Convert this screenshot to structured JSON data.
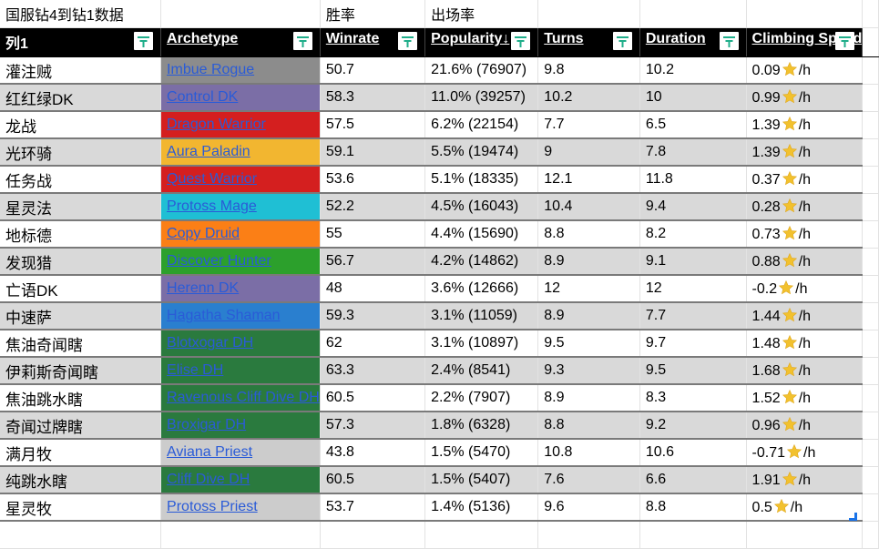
{
  "sheet": {
    "title": "国服钻4到钻1数据",
    "subheaders": {
      "winrate": "胜率",
      "popularity": "出场率"
    },
    "columns": [
      {
        "key": "name",
        "label": "列1"
      },
      {
        "key": "archetype",
        "label": "Archetype"
      },
      {
        "key": "winrate",
        "label": "Winrate"
      },
      {
        "key": "popularity",
        "label": "Popularity↓"
      },
      {
        "key": "turns",
        "label": "Turns"
      },
      {
        "key": "duration",
        "label": "Duration"
      },
      {
        "key": "climbing",
        "label": "Climbing Speed"
      }
    ],
    "climb_unit": "/h",
    "rows": [
      {
        "name": "灌注贼",
        "archetype": "Imbue Rogue",
        "color": "#8c8c8c",
        "winrate": "50.7",
        "popularity": "21.6% (76907)",
        "turns": "9.8",
        "duration": "10.2",
        "climbing": "0.09"
      },
      {
        "name": "红红绿DK",
        "archetype": "Control DK",
        "color": "#7b6ea6",
        "winrate": "58.3",
        "popularity": "11.0% (39257)",
        "turns": "10.2",
        "duration": "10",
        "climbing": "0.99"
      },
      {
        "name": "龙战",
        "archetype": "Dragon Warrior",
        "color": "#d41f1f",
        "winrate": "57.5",
        "popularity": "6.2% (22154)",
        "turns": "7.7",
        "duration": "6.5",
        "climbing": "1.39"
      },
      {
        "name": "光环骑",
        "archetype": "Aura Paladin",
        "color": "#f2b630",
        "winrate": "59.1",
        "popularity": "5.5% (19474)",
        "turns": "9",
        "duration": "7.8",
        "climbing": "1.39"
      },
      {
        "name": "任务战",
        "archetype": "Quest Warrior",
        "color": "#d41f1f",
        "winrate": "53.6",
        "popularity": "5.1% (18335)",
        "turns": "12.1",
        "duration": "11.8",
        "climbing": "0.37"
      },
      {
        "name": "星灵法",
        "archetype": "Protoss Mage",
        "color": "#1fbfd4",
        "winrate": "52.2",
        "popularity": "4.5% (16043)",
        "turns": "10.4",
        "duration": "9.4",
        "climbing": "0.28"
      },
      {
        "name": "地标德",
        "archetype": "Copy Druid",
        "color": "#fb7f16",
        "winrate": "55",
        "popularity": "4.4% (15690)",
        "turns": "8.8",
        "duration": "8.2",
        "climbing": "0.73"
      },
      {
        "name": "发现猎",
        "archetype": "Discover Hunter",
        "color": "#2ca02c",
        "winrate": "56.7",
        "popularity": "4.2% (14862)",
        "turns": "8.9",
        "duration": "9.1",
        "climbing": "0.88"
      },
      {
        "name": "亡语DK",
        "archetype": "Herenn DK",
        "color": "#7b6ea6",
        "winrate": "48",
        "popularity": "3.6% (12666)",
        "turns": "12",
        "duration": "12",
        "climbing": "-0.2"
      },
      {
        "name": "中速萨",
        "archetype": "Hagatha Shaman",
        "color": "#2a7fcf",
        "winrate": "59.3",
        "popularity": "3.1% (11059)",
        "turns": "8.9",
        "duration": "7.7",
        "climbing": "1.44"
      },
      {
        "name": "焦油奇闻瞎",
        "archetype": "Blotxogar DH",
        "color": "#2a7a3e",
        "winrate": "62",
        "popularity": "3.1% (10897)",
        "turns": "9.5",
        "duration": "9.7",
        "climbing": "1.48"
      },
      {
        "name": "伊莉斯奇闻瞎",
        "archetype": "Elise DH",
        "color": "#2a7a3e",
        "winrate": "63.3",
        "popularity": "2.4% (8541)",
        "turns": "9.3",
        "duration": "9.5",
        "climbing": "1.68"
      },
      {
        "name": "焦油跳水瞎",
        "archetype": "Ravenous Cliff Dive DH",
        "color": "#2a7a3e",
        "winrate": "60.5",
        "popularity": "2.2% (7907)",
        "turns": "8.9",
        "duration": "8.3",
        "climbing": "1.52"
      },
      {
        "name": "奇闻过牌瞎",
        "archetype": "Broxigar DH",
        "color": "#2a7a3e",
        "winrate": "57.3",
        "popularity": "1.8% (6328)",
        "turns": "8.8",
        "duration": "9.2",
        "climbing": "0.96"
      },
      {
        "name": "满月牧",
        "archetype": "Aviana Priest",
        "color": "#cccccc",
        "winrate": "43.8",
        "popularity": "1.5% (5470)",
        "turns": "10.8",
        "duration": "10.6",
        "climbing": "-0.71"
      },
      {
        "name": "纯跳水瞎",
        "archetype": "Cliff Dive DH",
        "color": "#2a7a3e",
        "winrate": "60.5",
        "popularity": "1.5% (5407)",
        "turns": "7.6",
        "duration": "6.6",
        "climbing": "1.91"
      },
      {
        "name": "星灵牧",
        "archetype": "Protoss Priest",
        "color": "#cccccc",
        "winrate": "53.7",
        "popularity": "1.4% (5136)",
        "turns": "9.6",
        "duration": "8.8",
        "climbing": "0.5"
      }
    ]
  },
  "colors": {
    "header_bg": "#000000",
    "filter_icon": "#1fae8a",
    "alt_row": "#d9d9d9",
    "link": "#2a5bd7",
    "star": "#f2c12e",
    "selection": "#1a73e8"
  }
}
